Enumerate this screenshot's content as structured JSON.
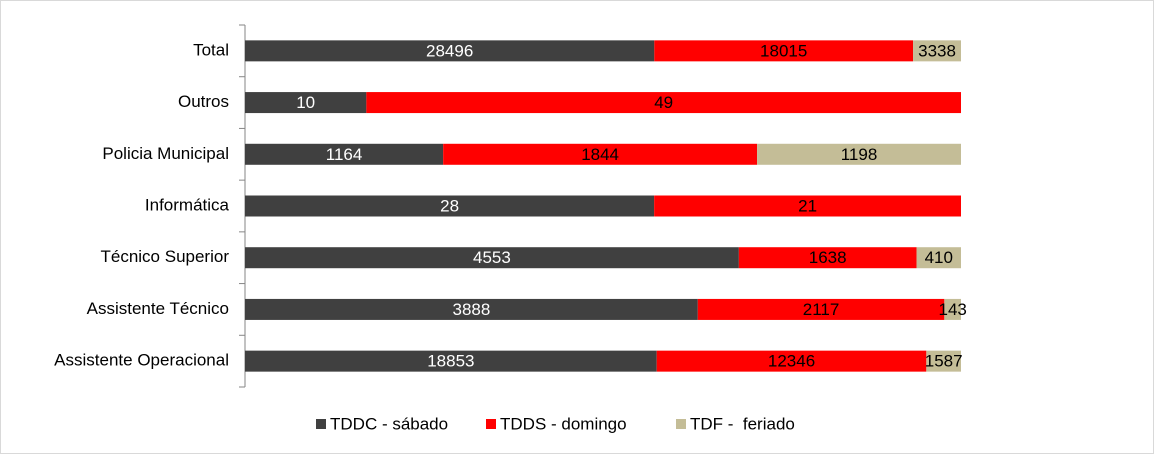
{
  "chart_data": {
    "type": "stacked_bar_100_horizontal",
    "categories": [
      "Total",
      "Outros",
      "Policia Municipal",
      "Informática",
      "Técnico Superior",
      "Assistente Técnico",
      "Assistente Operacional"
    ],
    "series": [
      {
        "name": "TDDC - sábado",
        "color": "#404040",
        "label_color": "#ffffff",
        "values": [
          28496,
          10,
          1164,
          28,
          4553,
          3888,
          18853
        ]
      },
      {
        "name": "TDDS - domingo",
        "color": "#ff0000",
        "label_color": "#000000",
        "values": [
          18015,
          49,
          1844,
          21,
          1638,
          2117,
          12346
        ]
      },
      {
        "name": "TDF -  feriado",
        "color": "#c4bd97",
        "label_color": "#000000",
        "values": [
          3338,
          null,
          1198,
          null,
          410,
          143,
          1587
        ]
      }
    ],
    "legend": "bottom"
  }
}
